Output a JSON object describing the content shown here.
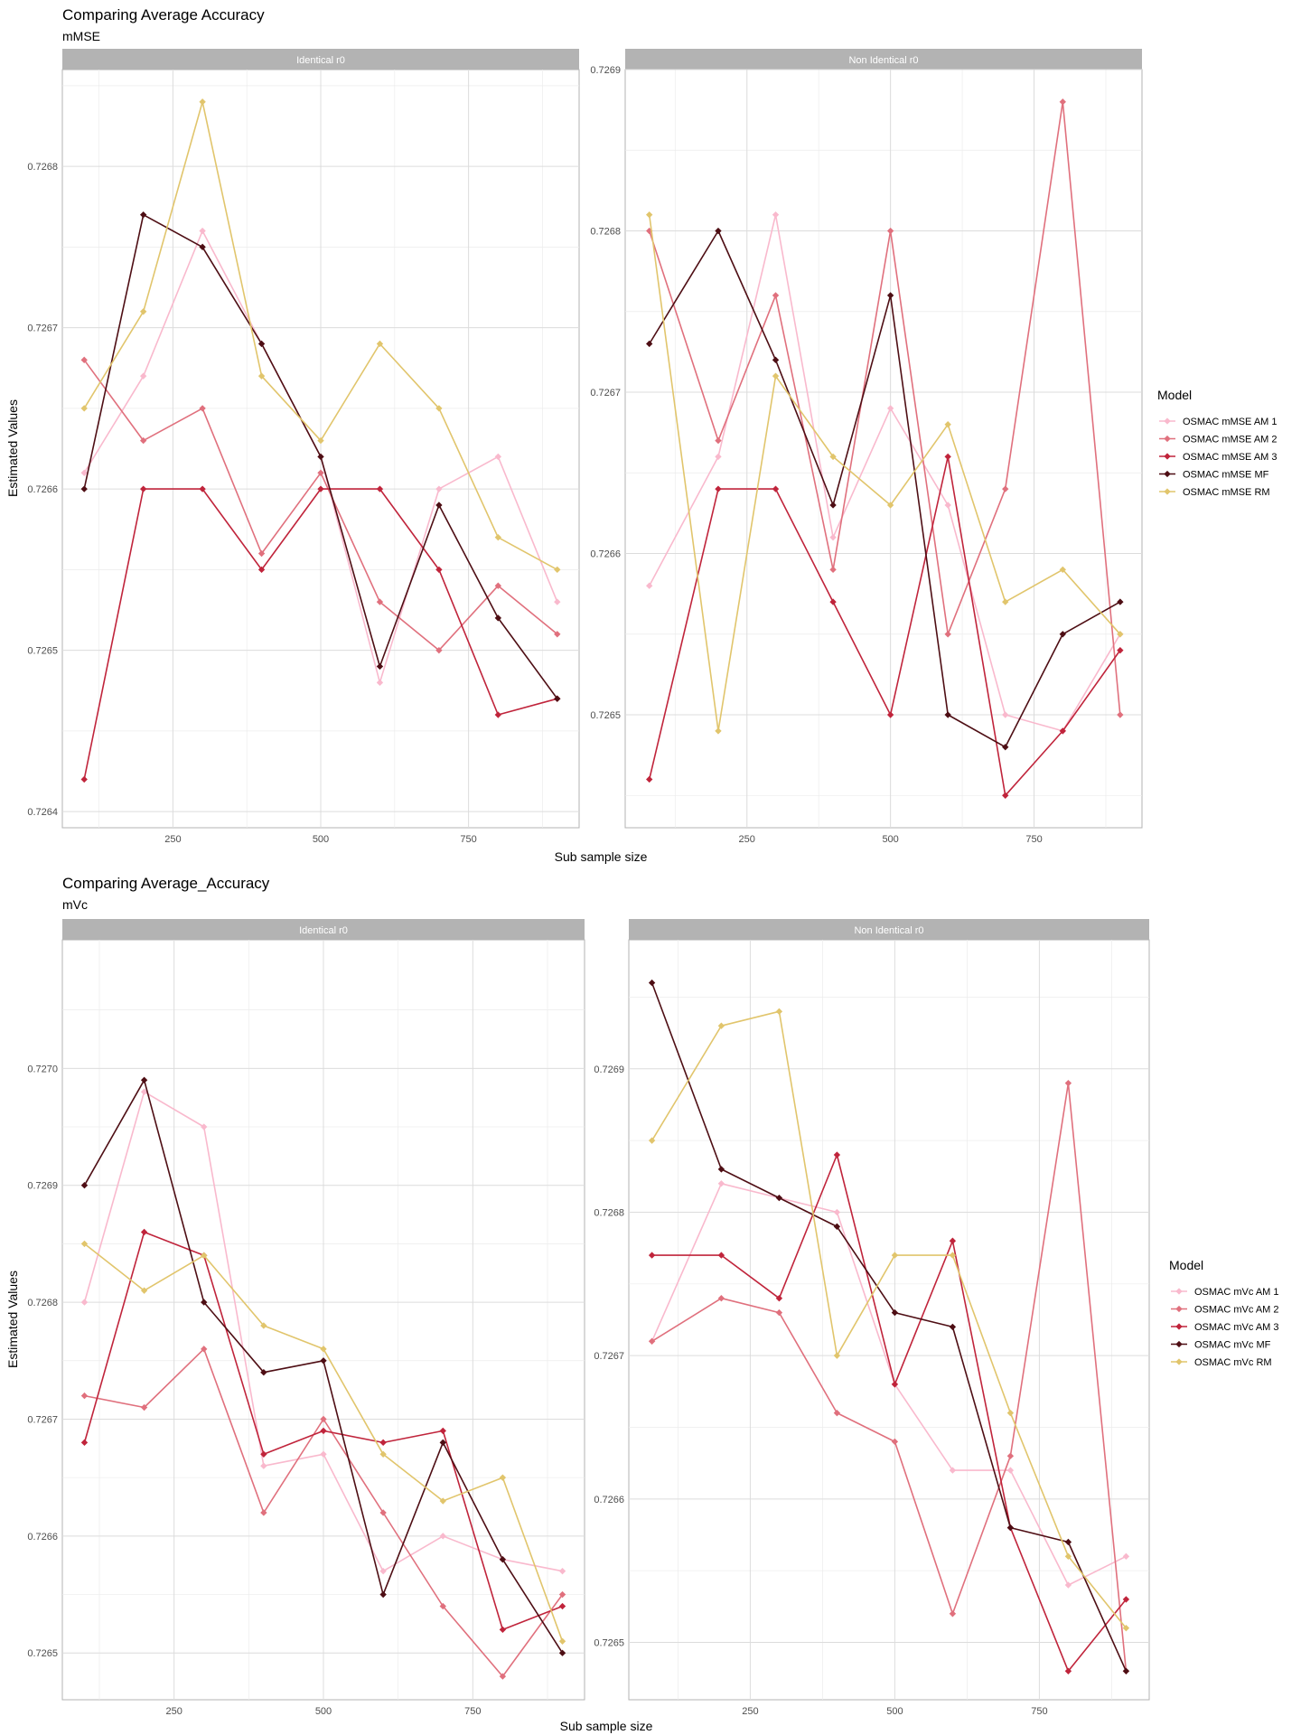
{
  "colors": {
    "AM1": "#f9b9cd",
    "AM2": "#e0707d",
    "AM3": "#c0243b",
    "MF": "#4e0e14",
    "RM": "#e1c56c",
    "strip": "#b3b3b3",
    "grid": "#dcdcdc",
    "panel_border": "#b3b3b3"
  },
  "chart_data": [
    {
      "type": "line",
      "title": "Comparing Average Accuracy",
      "subtitle": "mMSE",
      "xlabel": "Sub sample size",
      "ylabel": "Estimated Values",
      "x_ticks": [
        250,
        500,
        750
      ],
      "legend": {
        "title": "Model",
        "position": "right",
        "entries": [
          {
            "key": "AM1",
            "label": "OSMAC mMSE AM 1"
          },
          {
            "key": "AM2",
            "label": "OSMAC mMSE AM 2"
          },
          {
            "key": "AM3",
            "label": "OSMAC mMSE AM 3"
          },
          {
            "key": "MF",
            "label": "OSMAC mMSE MF"
          },
          {
            "key": "RM",
            "label": "OSMAC mMSE RM"
          }
        ]
      },
      "panels": [
        {
          "strip": "Identical r0",
          "xlim": [
            63,
            937
          ],
          "ylim": [
            0.72639,
            0.72686
          ],
          "y_ticks": [
            0.7264,
            0.7265,
            0.7266,
            0.7267,
            0.7268
          ],
          "y_tick_labels": [
            "0.7264",
            "0.7265",
            "0.7266",
            "0.7267",
            "0.7268"
          ],
          "x": [
            100,
            200,
            300,
            400,
            500,
            600,
            700,
            800,
            900
          ],
          "series": [
            {
              "key": "AM1",
              "values": [
                0.72661,
                0.72667,
                0.72676,
                0.72669,
                0.72662,
                0.72648,
                0.7266,
                0.72662,
                0.72653
              ]
            },
            {
              "key": "AM2",
              "values": [
                0.72668,
                0.72663,
                0.72665,
                0.72656,
                0.72661,
                0.72653,
                0.7265,
                0.72654,
                0.72651
              ]
            },
            {
              "key": "AM3",
              "values": [
                0.72642,
                0.7266,
                0.7266,
                0.72655,
                0.7266,
                0.7266,
                0.72655,
                0.72646,
                0.72647
              ]
            },
            {
              "key": "MF",
              "values": [
                0.7266,
                0.72677,
                0.72675,
                0.72669,
                0.72662,
                0.72649,
                0.72659,
                0.72652,
                0.72647
              ]
            },
            {
              "key": "RM",
              "values": [
                0.72665,
                0.72671,
                0.72684,
                0.72667,
                0.72663,
                0.72669,
                0.72665,
                0.72657,
                0.72655
              ]
            }
          ]
        },
        {
          "strip": "Non Identical r0",
          "xlim": [
            38,
            938
          ],
          "ylim": [
            0.72643,
            0.7269
          ],
          "y_ticks": [
            0.7265,
            0.7266,
            0.7267,
            0.7268,
            0.7269
          ],
          "y_tick_labels": [
            "0.7265",
            "0.7266",
            "0.7267",
            "0.7268",
            "0.7269"
          ],
          "x": [
            80,
            200,
            300,
            400,
            500,
            600,
            700,
            800,
            900
          ],
          "series": [
            {
              "key": "AM1",
              "values": [
                0.72658,
                0.72666,
                0.72681,
                0.72661,
                0.72669,
                0.72663,
                0.7265,
                0.72649,
                0.72655
              ]
            },
            {
              "key": "AM2",
              "values": [
                0.7268,
                0.72667,
                0.72676,
                0.72659,
                0.7268,
                0.72655,
                0.72664,
                0.72688,
                0.7265
              ]
            },
            {
              "key": "AM3",
              "values": [
                0.72646,
                0.72664,
                0.72664,
                0.72657,
                0.7265,
                0.72666,
                0.72645,
                0.72649,
                0.72654
              ]
            },
            {
              "key": "MF",
              "values": [
                0.72673,
                0.7268,
                0.72672,
                0.72663,
                0.72676,
                0.7265,
                0.72648,
                0.72655,
                0.72657
              ]
            },
            {
              "key": "RM",
              "values": [
                0.72681,
                0.72649,
                0.72671,
                0.72666,
                0.72663,
                0.72668,
                0.72657,
                0.72659,
                0.72655
              ]
            }
          ]
        }
      ]
    },
    {
      "type": "line",
      "title": "Comparing Average_Accuracy",
      "subtitle": "mVc",
      "xlabel": "Sub sample size",
      "ylabel": "Estimated Values",
      "x_ticks": [
        250,
        500,
        750
      ],
      "legend": {
        "title": "Model",
        "position": "right",
        "entries": [
          {
            "key": "AM1",
            "label": "OSMAC mVc AM 1"
          },
          {
            "key": "AM2",
            "label": "OSMAC mVc AM 2"
          },
          {
            "key": "AM3",
            "label": "OSMAC mVc AM 3"
          },
          {
            "key": "MF",
            "label": "OSMAC mVc MF"
          },
          {
            "key": "RM",
            "label": "OSMAC mVc RM"
          }
        ]
      },
      "panels": [
        {
          "strip": "Identical r0",
          "xlim": [
            63,
            937
          ],
          "ylim": [
            0.72646,
            0.72711
          ],
          "y_ticks": [
            0.7265,
            0.7266,
            0.7267,
            0.7268,
            0.7269,
            0.727
          ],
          "y_tick_labels": [
            "0.7265",
            "0.7266",
            "0.7267",
            "0.7268",
            "0.7269",
            "0.7270"
          ],
          "x": [
            100,
            200,
            300,
            400,
            500,
            600,
            700,
            800,
            900
          ],
          "series": [
            {
              "key": "AM1",
              "values": [
                0.7268,
                0.72698,
                0.72695,
                0.72666,
                0.72667,
                0.72657,
                0.7266,
                0.72658,
                0.72657
              ]
            },
            {
              "key": "AM2",
              "values": [
                0.72672,
                0.72671,
                0.72676,
                0.72662,
                0.7267,
                0.72662,
                0.72654,
                0.72648,
                0.72655
              ]
            },
            {
              "key": "AM3",
              "values": [
                0.72668,
                0.72686,
                0.72684,
                0.72667,
                0.72669,
                0.72668,
                0.72669,
                0.72652,
                0.72654
              ]
            },
            {
              "key": "MF",
              "values": [
                0.7269,
                0.72699,
                0.7268,
                0.72674,
                0.72675,
                0.72655,
                0.72668,
                0.72658,
                0.7265
              ]
            },
            {
              "key": "RM",
              "values": [
                0.72685,
                0.72681,
                0.72684,
                0.72678,
                0.72676,
                0.72667,
                0.72663,
                0.72665,
                0.72651
              ]
            }
          ]
        },
        {
          "strip": "Non Identical r0",
          "xlim": [
            40,
            940
          ],
          "ylim": [
            0.72646,
            0.72699
          ],
          "y_ticks": [
            0.7265,
            0.7266,
            0.7267,
            0.7268,
            0.7269
          ],
          "y_tick_labels": [
            "0.7265",
            "0.7266",
            "0.7267",
            "0.7268",
            "0.7269"
          ],
          "x": [
            80,
            200,
            300,
            400,
            500,
            600,
            700,
            800,
            900
          ],
          "series": [
            {
              "key": "AM1",
              "values": [
                0.72671,
                0.72682,
                0.72681,
                0.7268,
                0.72668,
                0.72662,
                0.72662,
                0.72654,
                0.72656
              ]
            },
            {
              "key": "AM2",
              "values": [
                0.72671,
                0.72674,
                0.72673,
                0.72666,
                0.72664,
                0.72652,
                0.72663,
                0.72689,
                0.72648
              ]
            },
            {
              "key": "AM3",
              "values": [
                0.72677,
                0.72677,
                0.72674,
                0.72684,
                0.72668,
                0.72678,
                0.72658,
                0.72648,
                0.72653
              ]
            },
            {
              "key": "MF",
              "values": [
                0.72696,
                0.72683,
                0.72681,
                0.72679,
                0.72673,
                0.72672,
                0.72658,
                0.72657,
                0.72648
              ]
            },
            {
              "key": "RM",
              "values": [
                0.72685,
                0.72693,
                0.72694,
                0.7267,
                0.72677,
                0.72677,
                0.72666,
                0.72656,
                0.72651
              ]
            }
          ]
        }
      ]
    }
  ]
}
